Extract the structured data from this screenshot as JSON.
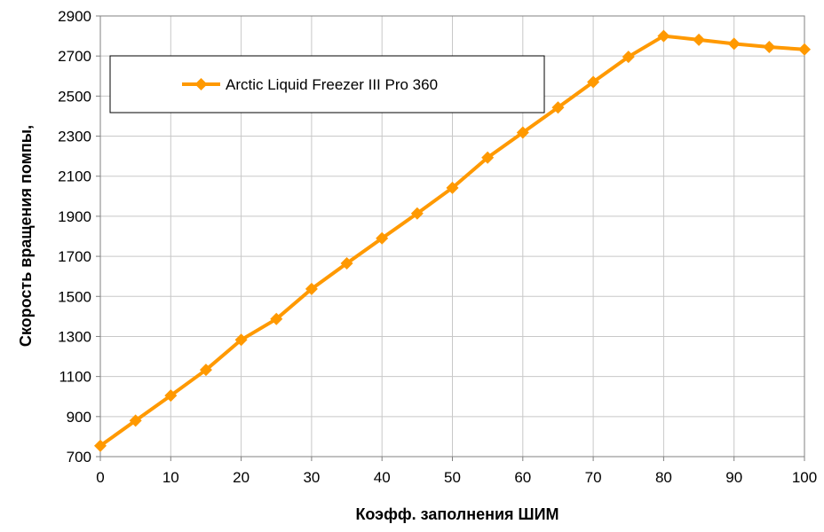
{
  "chart_data": {
    "type": "line",
    "title": "",
    "xlabel": "Коэфф. заполнения ШИМ",
    "ylabel": "Скорость вращения помпы,",
    "xlim": [
      0,
      100
    ],
    "ylim": [
      700,
      2900
    ],
    "x_ticks": [
      "0",
      "10",
      "20",
      "30",
      "40",
      "50",
      "60",
      "70",
      "80",
      "90",
      "100"
    ],
    "y_ticks": [
      "700",
      "900",
      "1100",
      "1300",
      "1500",
      "1700",
      "1900",
      "2100",
      "2300",
      "2500",
      "2700",
      "2900"
    ],
    "grid": true,
    "legend_position": "top-left",
    "x": [
      0,
      5,
      10,
      15,
      20,
      25,
      30,
      35,
      40,
      45,
      50,
      55,
      60,
      65,
      70,
      75,
      80,
      85,
      90,
      95,
      100
    ],
    "series": [
      {
        "name": "Arctic Liquid Freezer III Pro 360",
        "color": "#ff9900",
        "marker": "diamond",
        "values": [
          754,
          880,
          1005,
          1133,
          1283,
          1387,
          1537,
          1665,
          1790,
          1914,
          2042,
          2193,
          2318,
          2443,
          2570,
          2696,
          2800,
          2781,
          2761,
          2745,
          2733
        ]
      }
    ]
  }
}
